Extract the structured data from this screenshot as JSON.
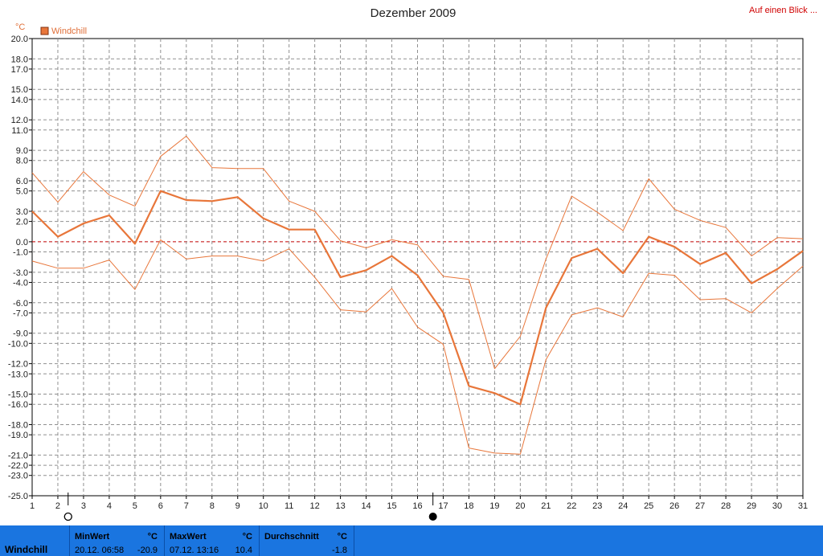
{
  "header": {
    "link_label": "Auf einen Blick ..."
  },
  "colors": {
    "series": "#e8763a",
    "zero_line": "#c00000",
    "grid": "#909090",
    "statsbar": "#1a75e0"
  },
  "icons": {
    "marker_left": "open-circle-icon",
    "marker_right": "filled-circle-icon"
  },
  "chart_data": {
    "type": "line",
    "title": "Dezember 2009",
    "yunit": "°C",
    "ylim": [
      -25,
      20
    ],
    "yticks": [
      "20.0",
      "18.0",
      "17.0",
      "15.0",
      "14.0",
      "12.0",
      "11.0",
      "9.0",
      "8.0",
      "6.0",
      "5.0",
      "3.0",
      "2.0",
      "0.0",
      "-1.0",
      "-3.0",
      "-4.0",
      "-6.0",
      "-7.0",
      "-9.0",
      "-10.0",
      "-12.0",
      "-13.0",
      "-15.0",
      "-16.0",
      "-18.0",
      "-19.0",
      "-21.0",
      "-22.0",
      "-23.0",
      "-25.0"
    ],
    "x": [
      1,
      2,
      3,
      4,
      5,
      6,
      7,
      8,
      9,
      10,
      11,
      12,
      13,
      14,
      15,
      16,
      17,
      18,
      19,
      20,
      21,
      22,
      23,
      24,
      25,
      26,
      27,
      28,
      29,
      30,
      31
    ],
    "legend": [
      "Windchill"
    ],
    "series": [
      {
        "name": "Windchill",
        "role": "max",
        "values": [
          6.8,
          3.9,
          6.9,
          4.6,
          3.5,
          8.4,
          10.4,
          7.3,
          7.2,
          7.2,
          4.0,
          3.0,
          0.1,
          -0.6,
          0.2,
          -0.3,
          -3.4,
          -3.7,
          -12.5,
          -9.3,
          -1.7,
          4.5,
          2.9,
          1.1,
          6.2,
          3.2,
          2.1,
          1.4,
          -1.4,
          0.4,
          0.3
        ]
      },
      {
        "name": "Windchill",
        "role": "avg",
        "values": [
          3.0,
          0.5,
          1.8,
          2.6,
          -0.2,
          5.0,
          4.1,
          4.0,
          4.4,
          2.3,
          1.2,
          1.2,
          -3.5,
          -2.8,
          -1.4,
          -3.3,
          -7.0,
          -14.2,
          -14.9,
          -16.0,
          -6.5,
          -1.6,
          -0.7,
          -3.1,
          0.5,
          -0.5,
          -2.2,
          -1.1,
          -4.1,
          -2.7,
          -0.9
        ]
      },
      {
        "name": "Windchill",
        "role": "min",
        "values": [
          -1.9,
          -2.6,
          -2.6,
          -1.8,
          -4.7,
          0.2,
          -1.7,
          -1.4,
          -1.4,
          -1.9,
          -0.7,
          -3.5,
          -6.7,
          -6.9,
          -4.6,
          -8.4,
          -10.1,
          -20.3,
          -20.8,
          -20.9,
          -11.6,
          -7.2,
          -6.5,
          -7.4,
          -3.1,
          -3.3,
          -5.7,
          -5.6,
          -7.0,
          -4.6,
          -2.4
        ]
      }
    ],
    "markers": {
      "left_x": 2.4,
      "right_x": 16.6
    }
  },
  "stats": {
    "label": "Windchill",
    "min": {
      "header": "MinWert",
      "unit": "°C",
      "date": "20.12.  06:58",
      "value": "-20.9"
    },
    "max": {
      "header": "MaxWert",
      "unit": "°C",
      "date": "07.12.  13:16",
      "value": "10.4"
    },
    "avg": {
      "header": "Durchschnitt",
      "unit": "°C",
      "value": "-1.8"
    }
  }
}
